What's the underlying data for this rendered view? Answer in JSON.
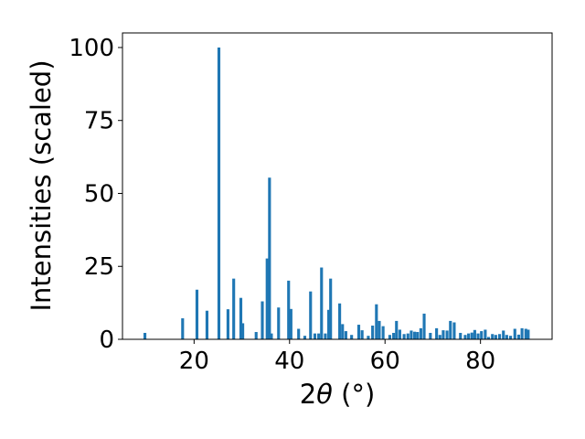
{
  "chart_data": {
    "type": "bar",
    "xlabel_parts": {
      "prefix": "2",
      "symbol": "θ",
      "suffix": " (°)"
    },
    "ylabel": "Intensities (scaled)",
    "xlim": [
      5,
      95
    ],
    "ylim": [
      0,
      105
    ],
    "xticks": [
      20,
      40,
      60,
      80
    ],
    "yticks": [
      0,
      25,
      50,
      75,
      100
    ],
    "bar_color": "#1f77b4",
    "bar_width": 0.6,
    "grid": false,
    "legend": "none",
    "x": [
      9.7,
      17.6,
      20.6,
      22.7,
      25.2,
      27.1,
      28.3,
      29.8,
      30.2,
      33.0,
      34.3,
      35.3,
      35.8,
      36.2,
      37.7,
      39.8,
      40.3,
      41.9,
      43.2,
      44.4,
      45.3,
      46.1,
      46.7,
      47.5,
      48.2,
      48.6,
      50.5,
      51.1,
      51.8,
      53.0,
      54.5,
      55.2,
      56.5,
      57.4,
      58.2,
      58.8,
      59.6,
      61.0,
      61.8,
      62.4,
      63.1,
      64.0,
      64.8,
      65.5,
      66.2,
      66.8,
      67.5,
      68.2,
      69.5,
      70.8,
      71.5,
      72.2,
      73.0,
      73.7,
      74.5,
      75.8,
      76.8,
      77.5,
      78.2,
      78.8,
      79.5,
      80.2,
      81.0,
      81.7,
      82.5,
      83.2,
      84.0,
      84.8,
      85.5,
      86.3,
      87.2,
      88.0,
      88.7,
      89.5,
      90.0
    ],
    "values": [
      2.2,
      7.2,
      17.0,
      9.8,
      100,
      10.3,
      20.8,
      14.2,
      5.5,
      2.5,
      13.0,
      27.7,
      55.4,
      2.0,
      10.9,
      20.1,
      10.4,
      3.6,
      1.2,
      16.4,
      2.0,
      2.0,
      24.6,
      2.0,
      10.1,
      20.8,
      12.3,
      5.2,
      2.8,
      1.5,
      5.0,
      3.1,
      1.2,
      4.7,
      12.0,
      6.3,
      4.5,
      1.5,
      2.2,
      6.3,
      3.3,
      1.8,
      2.0,
      3.0,
      2.6,
      2.5,
      3.8,
      8.8,
      2.2,
      3.8,
      1.5,
      3.1,
      3.0,
      6.3,
      5.8,
      2.2,
      1.5,
      2.0,
      2.3,
      3.2,
      2.0,
      2.8,
      3.3,
      0.8,
      1.8,
      1.5,
      1.8,
      3.0,
      1.5,
      1.2,
      3.6,
      1.6,
      3.8,
      3.6,
      3.3
    ]
  }
}
